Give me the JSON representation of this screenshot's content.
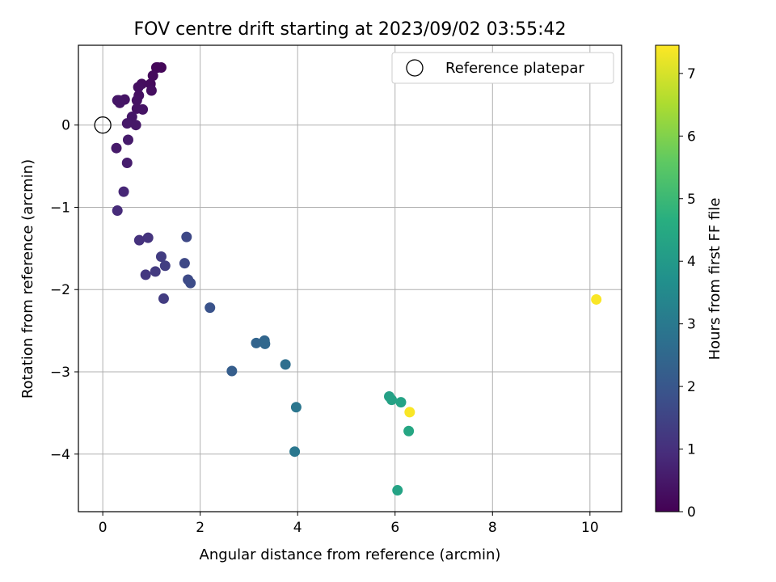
{
  "chart_data": {
    "type": "scatter",
    "title": "FOV centre drift starting at 2023/09/02 03:55:42",
    "xlabel": "Angular distance from reference (arcmin)",
    "ylabel": "Rotation from reference (arcmin)",
    "xlim": [
      -0.5,
      10.65
    ],
    "ylim": [
      -4.7,
      0.97
    ],
    "xticks": [
      0,
      2,
      4,
      6,
      8,
      10
    ],
    "yticks": [
      0,
      -1,
      -2,
      -3,
      -4
    ],
    "grid": true,
    "legend": {
      "position": "top-right",
      "entries": [
        "Reference platepar"
      ]
    },
    "reference_point": {
      "x": 0,
      "y": 0
    },
    "colorbar": {
      "label": "Hours from first FF file",
      "min": 0,
      "max": 7.45,
      "ticks": [
        0,
        1,
        2,
        3,
        4,
        5,
        6,
        7
      ],
      "colormap": "viridis"
    },
    "series": [
      {
        "points": [
          {
            "x": 1.2,
            "y": 0.7,
            "t": 0.1
          },
          {
            "x": 1.13,
            "y": 0.7,
            "t": 0.15
          },
          {
            "x": 1.1,
            "y": 0.7,
            "t": 0.12
          },
          {
            "x": 1.03,
            "y": 0.6,
            "t": 0.2
          },
          {
            "x": 0.8,
            "y": 0.5,
            "t": 0.25
          },
          {
            "x": 0.73,
            "y": 0.46,
            "t": 0.3
          },
          {
            "x": 0.98,
            "y": 0.5,
            "t": 0.22
          },
          {
            "x": 1.0,
            "y": 0.42,
            "t": 0.28
          },
          {
            "x": 0.74,
            "y": 0.36,
            "t": 0.32
          },
          {
            "x": 0.7,
            "y": 0.3,
            "t": 0.35
          },
          {
            "x": 0.45,
            "y": 0.31,
            "t": 0.4
          },
          {
            "x": 0.33,
            "y": 0.3,
            "t": 0.42
          },
          {
            "x": 0.3,
            "y": 0.3,
            "t": 0.45
          },
          {
            "x": 0.35,
            "y": 0.27,
            "t": 0.44
          },
          {
            "x": 0.7,
            "y": 0.2,
            "t": 0.36
          },
          {
            "x": 0.82,
            "y": 0.19,
            "t": 0.38
          },
          {
            "x": 0.6,
            "y": 0.1,
            "t": 0.46
          },
          {
            "x": 0.5,
            "y": 0.02,
            "t": 0.5
          },
          {
            "x": 0.68,
            "y": 0.0,
            "t": 0.48
          },
          {
            "x": 0.52,
            "y": -0.18,
            "t": 0.55
          },
          {
            "x": 0.28,
            "y": -0.28,
            "t": 0.52
          },
          {
            "x": 0.5,
            "y": -0.46,
            "t": 0.6
          },
          {
            "x": 0.43,
            "y": -0.81,
            "t": 0.8
          },
          {
            "x": 0.3,
            "y": -1.04,
            "t": 0.9
          },
          {
            "x": 0.93,
            "y": -1.37,
            "t": 1.1
          },
          {
            "x": 0.75,
            "y": -1.4,
            "t": 1.05
          },
          {
            "x": 1.72,
            "y": -1.36,
            "t": 1.6
          },
          {
            "x": 1.2,
            "y": -1.6,
            "t": 1.3
          },
          {
            "x": 1.68,
            "y": -1.68,
            "t": 1.6
          },
          {
            "x": 1.28,
            "y": -1.71,
            "t": 1.35
          },
          {
            "x": 1.08,
            "y": -1.78,
            "t": 1.25
          },
          {
            "x": 0.88,
            "y": -1.82,
            "t": 1.2
          },
          {
            "x": 1.75,
            "y": -1.88,
            "t": 1.65
          },
          {
            "x": 1.8,
            "y": -1.92,
            "t": 1.7
          },
          {
            "x": 1.25,
            "y": -2.11,
            "t": 1.3
          },
          {
            "x": 2.2,
            "y": -2.22,
            "t": 1.9
          },
          {
            "x": 3.15,
            "y": -2.65,
            "t": 2.4
          },
          {
            "x": 3.32,
            "y": -2.62,
            "t": 2.45
          },
          {
            "x": 3.33,
            "y": -2.66,
            "t": 2.5
          },
          {
            "x": 3.75,
            "y": -2.91,
            "t": 2.7
          },
          {
            "x": 2.65,
            "y": -2.99,
            "t": 2.2
          },
          {
            "x": 3.97,
            "y": -3.43,
            "t": 2.9
          },
          {
            "x": 3.94,
            "y": -3.97,
            "t": 2.95
          },
          {
            "x": 5.88,
            "y": -3.3,
            "t": 4.2
          },
          {
            "x": 5.93,
            "y": -3.34,
            "t": 4.25
          },
          {
            "x": 6.12,
            "y": -3.37,
            "t": 4.3
          },
          {
            "x": 6.3,
            "y": -3.49,
            "t": 7.4
          },
          {
            "x": 6.28,
            "y": -3.72,
            "t": 4.4
          },
          {
            "x": 6.05,
            "y": -4.44,
            "t": 4.3
          },
          {
            "x": 10.13,
            "y": -2.12,
            "t": 7.4
          }
        ]
      }
    ]
  }
}
